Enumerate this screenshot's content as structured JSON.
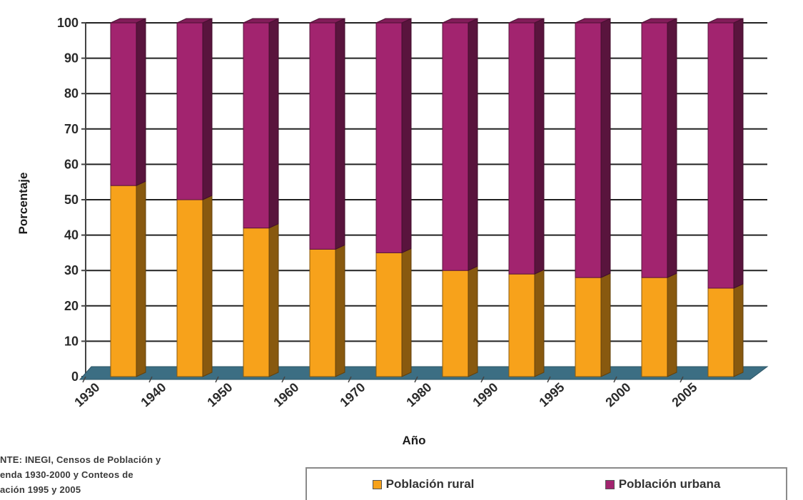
{
  "chart_data": {
    "type": "bar",
    "stacked": true,
    "percent_stacked": true,
    "three_d": true,
    "title": "",
    "xlabel": "Año",
    "ylabel": "Porcentaje",
    "ylim": [
      0,
      100
    ],
    "yticks": [
      0,
      10,
      20,
      30,
      40,
      50,
      60,
      70,
      80,
      90,
      100
    ],
    "categories": [
      "1930",
      "1940",
      "1950",
      "1960",
      "1970",
      "1980",
      "1990",
      "1995",
      "2000",
      "2005"
    ],
    "series": [
      {
        "name": "Población rural",
        "color": "#f7a21b",
        "values": [
          54,
          50,
          42,
          36,
          35,
          30,
          29,
          28,
          28,
          25
        ]
      },
      {
        "name": "Población urbana",
        "color": "#a2246f",
        "values": [
          46,
          50,
          58,
          64,
          65,
          70,
          71,
          72,
          72,
          75
        ]
      }
    ],
    "grid": true,
    "legend_position": "bottom-right"
  },
  "source_note": "NTE: INEGI, Censos de Población y\nenda 1930-2000 y Conteos de\nación 1995 y 2005",
  "colors": {
    "floor": "#3c6e83",
    "gridline": "#222222",
    "axis": "#444444"
  }
}
